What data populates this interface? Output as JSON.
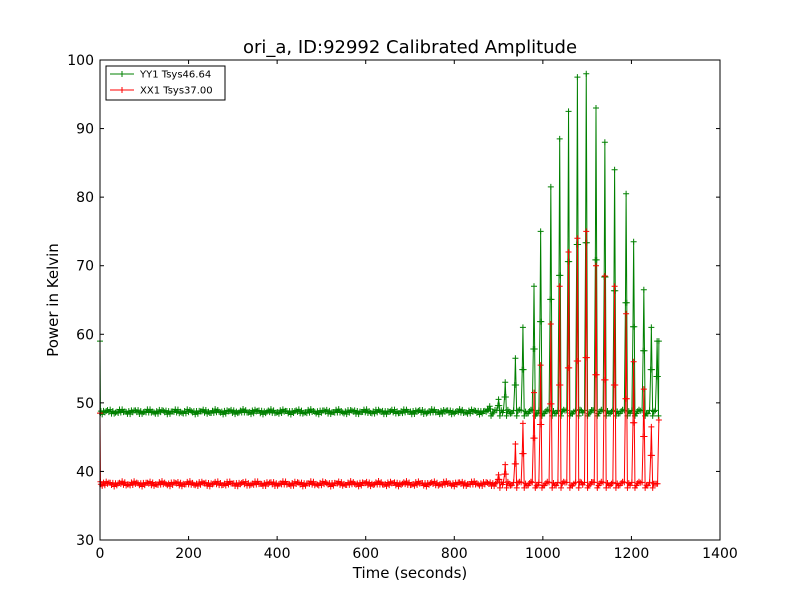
{
  "chart_data": {
    "type": "line",
    "title": "ori_a, ID:92992 Calibrated Amplitude",
    "xlabel": "Time (seconds)",
    "ylabel": "Power in Kelvin",
    "xlim": [
      0,
      1400
    ],
    "ylim": [
      30,
      100
    ],
    "xticks": [
      0,
      200,
      400,
      600,
      800,
      1000,
      1200,
      1400
    ],
    "yticks": [
      30,
      40,
      50,
      60,
      70,
      80,
      90,
      100
    ],
    "grid": false,
    "legend_position": "top-left",
    "marker": "+",
    "series": [
      {
        "name": "YY1 Tsys46.64",
        "color": "#008000",
        "baseline": 48.7,
        "start": [
          [
            0,
            59
          ],
          [
            1,
            48.5
          ]
        ],
        "end": [
          1262,
          59
        ],
        "peaks": [
          [
            880,
            49.5
          ],
          [
            900,
            50.5
          ],
          [
            915,
            53
          ],
          [
            938,
            56.5
          ],
          [
            955,
            61
          ],
          [
            980,
            67
          ],
          [
            995,
            75
          ],
          [
            1018,
            81.5
          ],
          [
            1038,
            88.5
          ],
          [
            1058,
            92.5
          ],
          [
            1078,
            97.5
          ],
          [
            1098,
            98
          ],
          [
            1120,
            93
          ],
          [
            1140,
            88
          ],
          [
            1162,
            84
          ],
          [
            1188,
            80.5
          ],
          [
            1205,
            73.5
          ],
          [
            1228,
            66.5
          ],
          [
            1245,
            61
          ],
          [
            1258,
            59
          ]
        ]
      },
      {
        "name": "XX1 Tsys37.00",
        "color": "#ff0000",
        "baseline": 38.2,
        "start": [
          [
            0,
            48.5
          ],
          [
            1,
            38.5
          ]
        ],
        "end": [
          1262,
          47.5
        ],
        "peaks": [
          [
            900,
            39.5
          ],
          [
            915,
            41
          ],
          [
            938,
            44
          ],
          [
            955,
            47
          ],
          [
            980,
            51.5
          ],
          [
            995,
            55.5
          ],
          [
            1018,
            61.5
          ],
          [
            1038,
            67
          ],
          [
            1058,
            72
          ],
          [
            1078,
            74
          ],
          [
            1098,
            75
          ],
          [
            1120,
            70
          ],
          [
            1140,
            68.5
          ],
          [
            1162,
            67
          ],
          [
            1188,
            63
          ],
          [
            1205,
            56
          ],
          [
            1228,
            52
          ],
          [
            1245,
            46.5
          ]
        ]
      }
    ]
  }
}
